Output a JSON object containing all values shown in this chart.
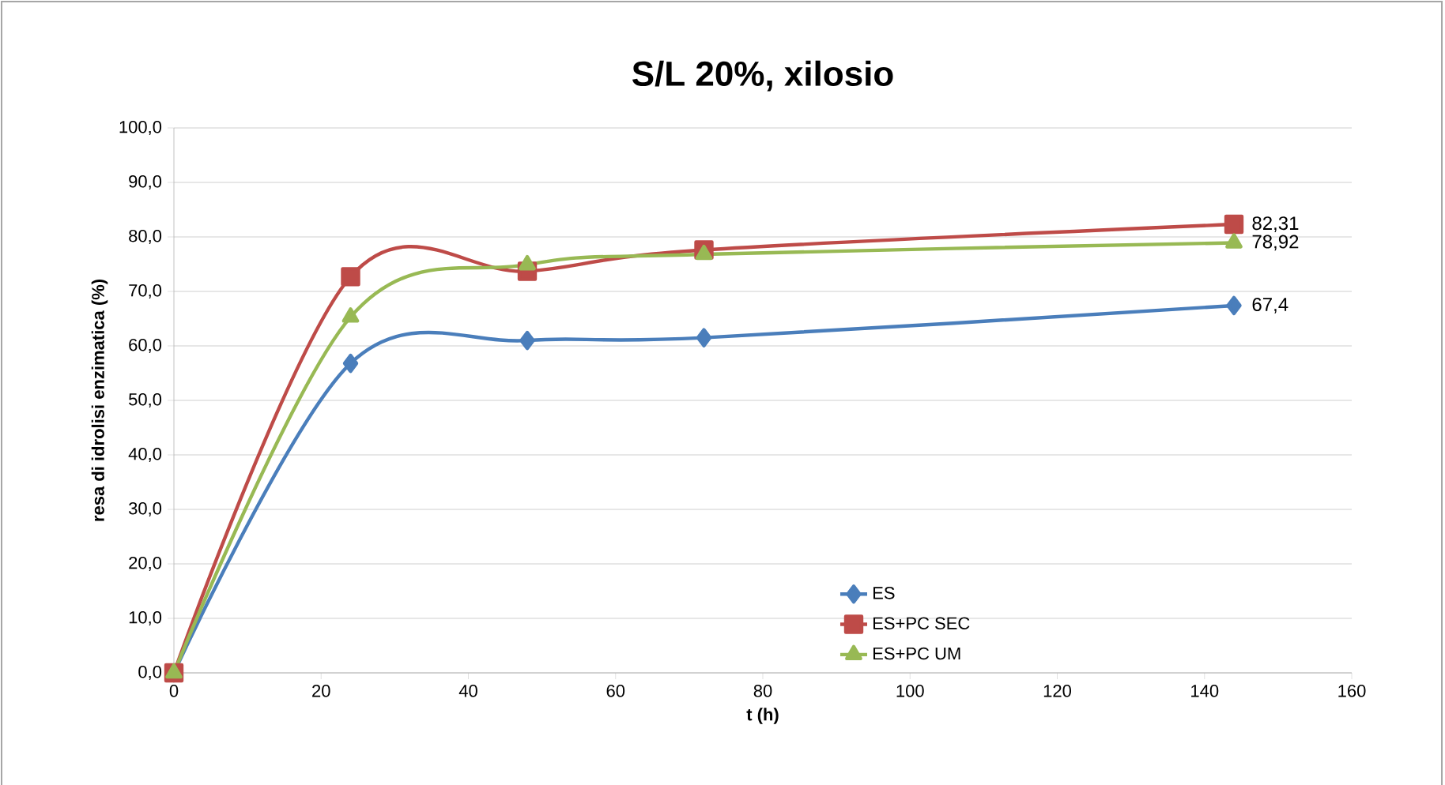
{
  "chart_data": {
    "type": "line",
    "title": "S/L 20%, xilosio",
    "xlabel": "t (h)",
    "ylabel": "resa di idrolisi enzimatica (%)",
    "x": [
      0,
      24,
      48,
      72,
      144
    ],
    "series": [
      {
        "name": "ES",
        "color": "#4a7ebb",
        "marker": "diamond",
        "values": [
          0,
          56.8,
          61.0,
          61.5,
          67.4
        ],
        "value_labels": [
          null,
          null,
          null,
          null,
          "67,4"
        ]
      },
      {
        "name": "ES+PC SEC",
        "color": "#be4b48",
        "marker": "square",
        "values": [
          0,
          72.7,
          73.7,
          77.6,
          82.31
        ],
        "value_labels": [
          null,
          null,
          null,
          null,
          "82,31"
        ]
      },
      {
        "name": "ES+PC UM",
        "color": "#98b954",
        "marker": "triangle",
        "values": [
          0,
          65.3,
          74.9,
          76.8,
          78.92
        ],
        "value_labels": [
          null,
          null,
          null,
          null,
          "78,92"
        ]
      }
    ],
    "xlim": [
      0,
      160
    ],
    "xticks": [
      0,
      20,
      40,
      60,
      80,
      100,
      120,
      140,
      160
    ],
    "ylim": [
      0,
      100
    ],
    "yticks": [
      {
        "value": 0,
        "label": "0,0"
      },
      {
        "value": 10,
        "label": "10,0"
      },
      {
        "value": 20,
        "label": "20,0"
      },
      {
        "value": 30,
        "label": "30,0"
      },
      {
        "value": 40,
        "label": "40,0"
      },
      {
        "value": 50,
        "label": "50,0"
      },
      {
        "value": 60,
        "label": "60,0"
      },
      {
        "value": 70,
        "label": "70,0"
      },
      {
        "value": 80,
        "label": "80,0"
      },
      {
        "value": 90,
        "label": "90,0"
      },
      {
        "value": 100,
        "label": "100,0"
      }
    ],
    "grid": "y",
    "legend": "bottom right",
    "line_style": "solid"
  }
}
